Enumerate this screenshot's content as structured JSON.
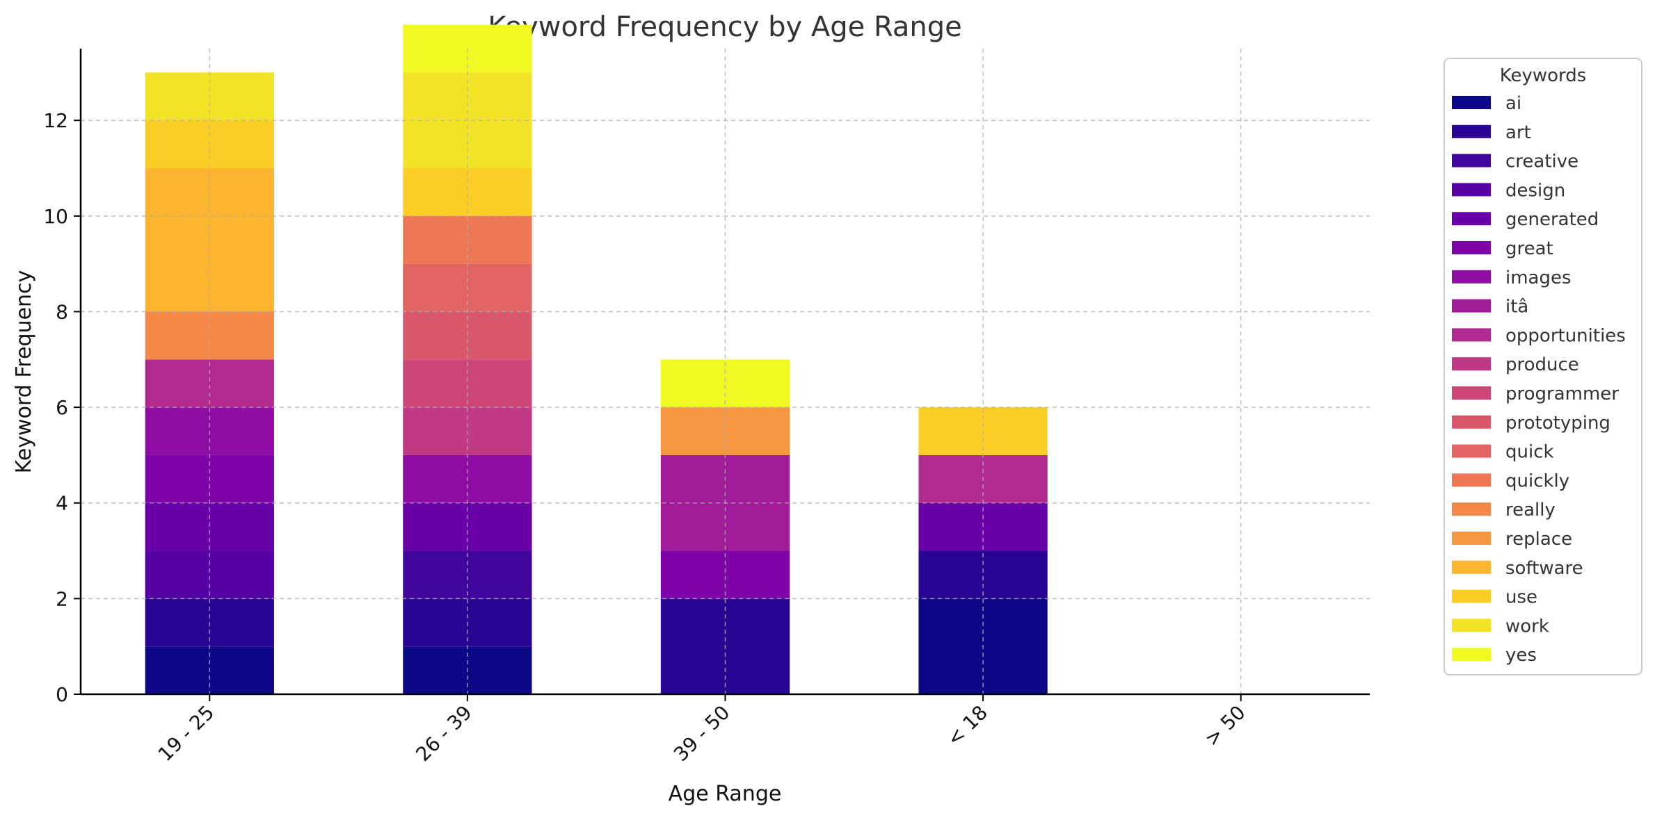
{
  "chart_data": {
    "type": "bar",
    "stacked": true,
    "title": "Keyword Frequency by Age Range",
    "xlabel": "Age Range",
    "ylabel": "Keyword Frequency",
    "ylim": [
      0,
      13.5
    ],
    "yticks": [
      0,
      2,
      4,
      6,
      8,
      10,
      12
    ],
    "grid": true,
    "categories": [
      "19 - 25",
      "26 - 39",
      "39 - 50",
      "< 18",
      "> 50"
    ],
    "legend": {
      "title": "Keywords",
      "placement": "outside-right"
    },
    "series": [
      {
        "name": "ai",
        "color": "#0d0887",
        "values": [
          1,
          1,
          0,
          2,
          0
        ]
      },
      {
        "name": "art",
        "color": "#2a0593",
        "values": [
          1,
          1,
          2,
          1,
          0
        ]
      },
      {
        "name": "creative",
        "color": "#41049d",
        "values": [
          0,
          1,
          0,
          0,
          0
        ]
      },
      {
        "name": "design",
        "color": "#5601a4",
        "values": [
          1,
          0,
          0,
          0,
          0
        ]
      },
      {
        "name": "generated",
        "color": "#6a00a8",
        "values": [
          1,
          1,
          0,
          1,
          0
        ]
      },
      {
        "name": "great",
        "color": "#7e03a8",
        "values": [
          1,
          0,
          1,
          0,
          0
        ]
      },
      {
        "name": "images",
        "color": "#8f0da4",
        "values": [
          1,
          1,
          0,
          0,
          0
        ]
      },
      {
        "name": "itâ",
        "color": "#a11b9b",
        "values": [
          0,
          0,
          2,
          0,
          0
        ]
      },
      {
        "name": "opportunities",
        "color": "#b12a90",
        "values": [
          1,
          0,
          0,
          1,
          0
        ]
      },
      {
        "name": "produce",
        "color": "#bf3984",
        "values": [
          0,
          1,
          0,
          0,
          0
        ]
      },
      {
        "name": "programmer",
        "color": "#cc4778",
        "values": [
          0,
          1,
          0,
          0,
          0
        ]
      },
      {
        "name": "prototyping",
        "color": "#d8576b",
        "values": [
          0,
          1,
          0,
          0,
          0
        ]
      },
      {
        "name": "quick",
        "color": "#e16462",
        "values": [
          0,
          1,
          0,
          0,
          0
        ]
      },
      {
        "name": "quickly",
        "color": "#ec7853",
        "values": [
          0,
          1,
          0,
          0,
          0
        ]
      },
      {
        "name": "really",
        "color": "#f48849",
        "values": [
          1,
          0,
          0,
          0,
          0
        ]
      },
      {
        "name": "replace",
        "color": "#f89540",
        "values": [
          0,
          0,
          1,
          0,
          0
        ]
      },
      {
        "name": "software",
        "color": "#fdb42f",
        "values": [
          3,
          0,
          0,
          0,
          0
        ]
      },
      {
        "name": "use",
        "color": "#fbcd25",
        "values": [
          1,
          1,
          0,
          1,
          0
        ]
      },
      {
        "name": "work",
        "color": "#f3e326",
        "values": [
          1,
          2,
          0,
          0,
          0
        ]
      },
      {
        "name": "yes",
        "color": "#f0f921",
        "values": [
          0,
          1,
          1,
          0,
          0
        ]
      }
    ]
  }
}
